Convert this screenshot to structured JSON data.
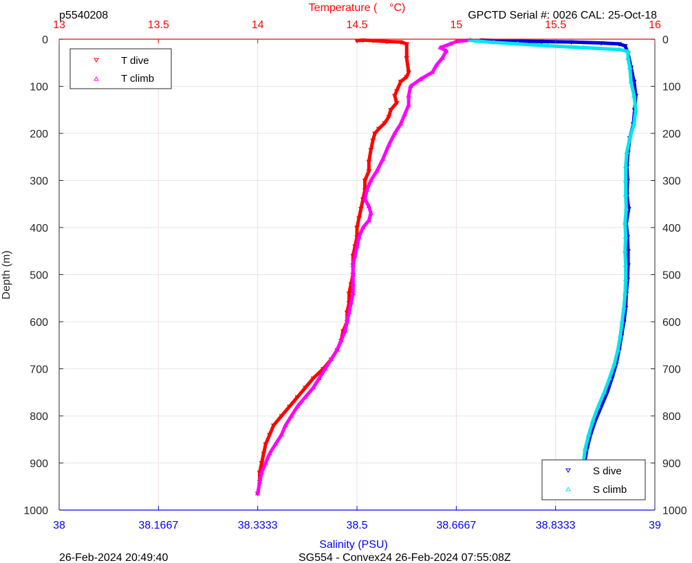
{
  "header": {
    "profile_id": "p5540208",
    "serial_cal": "GPCTD Serial #: 0026 CAL: 25-Oct-18"
  },
  "footer": {
    "plot_time": "26-Feb-2024 20:49:40",
    "mission": "SG554 - Convex24 26-Feb-2024 07:55:08Z"
  },
  "colors": {
    "temperature_axis": "#ff0000",
    "salinity_axis": "#0000ff",
    "t_dive": "#ff0000",
    "t_climb": "#ff00ff",
    "s_dive": "#0000dd",
    "s_climb": "#00e5ee",
    "grid": "#e6e6e6",
    "axis": "#262626"
  },
  "chart_data": {
    "type": "scatter",
    "title": "",
    "xlabel_top": "Temperature (    °C)",
    "xlabel_bottom": "Salinity (PSU)",
    "ylabel": "Depth (m)",
    "temperature_axis": {
      "range": [
        13,
        16
      ],
      "ticks": [
        "13",
        "13.5",
        "14",
        "14.5",
        "15",
        "15.5",
        "16"
      ]
    },
    "salinity_axis": {
      "range": [
        38,
        39
      ],
      "ticks": [
        "38",
        "38.1667",
        "38.3333",
        "38.5",
        "38.6667",
        "38.8333",
        "39"
      ]
    },
    "depth_axis": {
      "range": [
        0,
        1000
      ],
      "reversed": true,
      "ticks": [
        "0",
        "100",
        "200",
        "300",
        "400",
        "500",
        "600",
        "700",
        "800",
        "900",
        "1000"
      ]
    },
    "grid": true,
    "legends": [
      {
        "position": "top-left",
        "entries": [
          "T dive",
          "T climb"
        ]
      },
      {
        "position": "bottom-right",
        "entries": [
          "S dive",
          "S climb"
        ]
      }
    ],
    "series": [
      {
        "name": "T dive",
        "axis": "temperature",
        "marker": "triangle-down",
        "points": [
          [
            14.5,
            3
          ],
          [
            14.53,
            2
          ],
          [
            14.58,
            3
          ],
          [
            14.65,
            5
          ],
          [
            14.72,
            6
          ],
          [
            14.75,
            10
          ],
          [
            14.75,
            40
          ],
          [
            14.76,
            70
          ],
          [
            14.75,
            80
          ],
          [
            14.72,
            90
          ],
          [
            14.7,
            110
          ],
          [
            14.69,
            120
          ],
          [
            14.7,
            135
          ],
          [
            14.67,
            150
          ],
          [
            14.66,
            165
          ],
          [
            14.64,
            178
          ],
          [
            14.61,
            190
          ],
          [
            14.59,
            200
          ],
          [
            14.58,
            215
          ],
          [
            14.57,
            235
          ],
          [
            14.56,
            260
          ],
          [
            14.56,
            280
          ],
          [
            14.54,
            300
          ],
          [
            14.54,
            320
          ],
          [
            14.53,
            340
          ],
          [
            14.52,
            360
          ],
          [
            14.51,
            380
          ],
          [
            14.5,
            400
          ],
          [
            14.5,
            420
          ],
          [
            14.49,
            440
          ],
          [
            14.48,
            460
          ],
          [
            14.48,
            480
          ],
          [
            14.48,
            500
          ],
          [
            14.47,
            520
          ],
          [
            14.46,
            540
          ],
          [
            14.46,
            560
          ],
          [
            14.45,
            580
          ],
          [
            14.45,
            600
          ],
          [
            14.43,
            620
          ],
          [
            14.42,
            640
          ],
          [
            14.4,
            660
          ],
          [
            14.37,
            680
          ],
          [
            14.33,
            700
          ],
          [
            14.28,
            720
          ],
          [
            14.24,
            740
          ],
          [
            14.2,
            760
          ],
          [
            14.16,
            780
          ],
          [
            14.12,
            800
          ],
          [
            14.08,
            820
          ],
          [
            14.06,
            840
          ],
          [
            14.04,
            860
          ],
          [
            14.03,
            880
          ],
          [
            14.02,
            900
          ],
          [
            14.01,
            920
          ],
          [
            14.01,
            940
          ],
          [
            14.0,
            965
          ]
        ]
      },
      {
        "name": "T climb",
        "axis": "temperature",
        "marker": "triangle-up",
        "points": [
          [
            14.0,
            965
          ],
          [
            14.01,
            940
          ],
          [
            14.02,
            920
          ],
          [
            14.04,
            900
          ],
          [
            14.06,
            880
          ],
          [
            14.09,
            860
          ],
          [
            14.12,
            840
          ],
          [
            14.14,
            820
          ],
          [
            14.17,
            800
          ],
          [
            14.2,
            780
          ],
          [
            14.24,
            760
          ],
          [
            14.28,
            740
          ],
          [
            14.31,
            720
          ],
          [
            14.34,
            700
          ],
          [
            14.37,
            680
          ],
          [
            14.4,
            660
          ],
          [
            14.42,
            640
          ],
          [
            14.44,
            620
          ],
          [
            14.45,
            600
          ],
          [
            14.46,
            580
          ],
          [
            14.47,
            560
          ],
          [
            14.48,
            540
          ],
          [
            14.48,
            520
          ],
          [
            14.48,
            500
          ],
          [
            14.48,
            480
          ],
          [
            14.49,
            460
          ],
          [
            14.5,
            440
          ],
          [
            14.51,
            420
          ],
          [
            14.53,
            400
          ],
          [
            14.56,
            385
          ],
          [
            14.57,
            370
          ],
          [
            14.56,
            355
          ],
          [
            14.54,
            340
          ],
          [
            14.55,
            320
          ],
          [
            14.57,
            300
          ],
          [
            14.6,
            280
          ],
          [
            14.63,
            255
          ],
          [
            14.66,
            225
          ],
          [
            14.69,
            200
          ],
          [
            14.72,
            180
          ],
          [
            14.74,
            160
          ],
          [
            14.76,
            140
          ],
          [
            14.76,
            120
          ],
          [
            14.77,
            100
          ],
          [
            14.82,
            85
          ],
          [
            14.88,
            70
          ],
          [
            14.9,
            55
          ],
          [
            14.93,
            40
          ],
          [
            14.95,
            25
          ],
          [
            14.92,
            18
          ],
          [
            14.97,
            10
          ],
          [
            15.0,
            5
          ],
          [
            15.07,
            2
          ]
        ]
      },
      {
        "name": "S dive",
        "axis": "salinity",
        "marker": "triangle-down",
        "points": [
          [
            38.71,
            2
          ],
          [
            38.76,
            4
          ],
          [
            38.81,
            5
          ],
          [
            38.86,
            6
          ],
          [
            38.91,
            8
          ],
          [
            38.94,
            10
          ],
          [
            38.95,
            14
          ],
          [
            38.955,
            30
          ],
          [
            38.96,
            60
          ],
          [
            38.965,
            90
          ],
          [
            38.968,
            120
          ],
          [
            38.966,
            150
          ],
          [
            38.964,
            180
          ],
          [
            38.958,
            210
          ],
          [
            38.955,
            240
          ],
          [
            38.953,
            270
          ],
          [
            38.954,
            300
          ],
          [
            38.953,
            330
          ],
          [
            38.956,
            360
          ],
          [
            38.952,
            390
          ],
          [
            38.954,
            420
          ],
          [
            38.955,
            450
          ],
          [
            38.955,
            480
          ],
          [
            38.954,
            510
          ],
          [
            38.952,
            540
          ],
          [
            38.951,
            570
          ],
          [
            38.948,
            600
          ],
          [
            38.944,
            630
          ],
          [
            38.94,
            660
          ],
          [
            38.935,
            690
          ],
          [
            38.928,
            720
          ],
          [
            38.92,
            750
          ],
          [
            38.91,
            780
          ],
          [
            38.9,
            810
          ],
          [
            38.892,
            840
          ],
          [
            38.886,
            870
          ],
          [
            38.882,
            900
          ],
          [
            38.879,
            930
          ],
          [
            38.877,
            965
          ]
        ]
      },
      {
        "name": "S climb",
        "axis": "salinity",
        "marker": "triangle-up",
        "points": [
          [
            38.877,
            965
          ],
          [
            38.878,
            930
          ],
          [
            38.88,
            900
          ],
          [
            38.883,
            870
          ],
          [
            38.889,
            840
          ],
          [
            38.896,
            810
          ],
          [
            38.905,
            780
          ],
          [
            38.915,
            750
          ],
          [
            38.924,
            720
          ],
          [
            38.932,
            690
          ],
          [
            38.938,
            660
          ],
          [
            38.942,
            630
          ],
          [
            38.945,
            600
          ],
          [
            38.948,
            570
          ],
          [
            38.95,
            540
          ],
          [
            38.951,
            510
          ],
          [
            38.951,
            480
          ],
          [
            38.95,
            450
          ],
          [
            38.951,
            420
          ],
          [
            38.95,
            390
          ],
          [
            38.952,
            360
          ],
          [
            38.951,
            330
          ],
          [
            38.951,
            300
          ],
          [
            38.951,
            270
          ],
          [
            38.953,
            240
          ],
          [
            38.958,
            210
          ],
          [
            38.965,
            180
          ],
          [
            38.968,
            150
          ],
          [
            38.965,
            120
          ],
          [
            38.96,
            90
          ],
          [
            38.958,
            60
          ],
          [
            38.955,
            40
          ],
          [
            38.955,
            26
          ],
          [
            38.94,
            22
          ],
          [
            38.88,
            18
          ],
          [
            38.82,
            14
          ],
          [
            38.77,
            10
          ],
          [
            38.73,
            7
          ],
          [
            38.7,
            4
          ],
          [
            38.69,
            2
          ]
        ]
      }
    ]
  }
}
